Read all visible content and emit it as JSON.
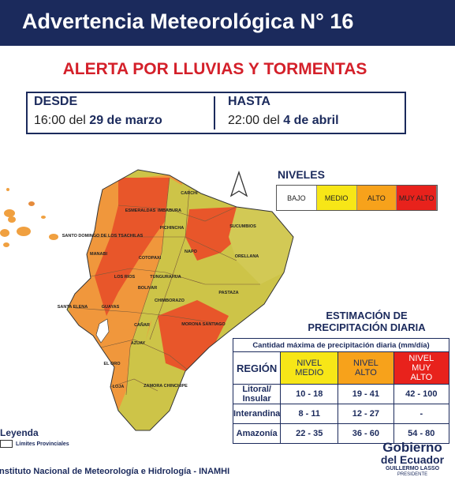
{
  "header": {
    "title": "Advertencia Meteorológica N° 16"
  },
  "alert": {
    "title": "ALERTA POR LLUVIAS Y TORMENTAS"
  },
  "period": {
    "from": {
      "label": "DESDE",
      "time": "16:00 del",
      "date": "29 de marzo"
    },
    "to": {
      "label": "HASTA",
      "time": "22:00 del",
      "date": "4 de abril"
    }
  },
  "levels": {
    "title": "NIVELES",
    "items": [
      {
        "label": "BAJO",
        "color": "#ffffff"
      },
      {
        "label": "MEDIO",
        "color": "#f7e617"
      },
      {
        "label": "ALTO",
        "color": "#f7a21b"
      },
      {
        "label": "MUY ALTO",
        "color": "#e8221c"
      }
    ]
  },
  "map": {
    "provinces": [
      "ESMERALDAS",
      "CARCHI",
      "IMBABURA",
      "SUCUMBIOS",
      "SANTO DOMINGO DE LOS TSACHILAS",
      "PICHINCHA",
      "NAPO",
      "ORELLANA",
      "MANABI",
      "COTOPAXI",
      "LOS RIOS",
      "TUNGURAHUA",
      "PASTAZA",
      "BOLIVAR",
      "CHIMBORAZO",
      "SANTA ELENA",
      "GUAYAS",
      "MORONA SANTIAGO",
      "CAÑAR",
      "AZUAY",
      "EL ORO",
      "LOJA",
      "ZAMORA CHINCHIPE"
    ]
  },
  "estimate": {
    "title_lines": [
      "ESTIMACIÓN DE",
      "PRECIPITACIÓN DIARIA"
    ],
    "table": {
      "caption": "Cantidad máxima de precipitación diaria (mm/día)",
      "header": [
        "REGIÓN",
        "NIVEL MEDIO",
        "NIVEL ALTO",
        "NIVEL MUY ALTO"
      ],
      "rows": [
        [
          "Litoral/ Insular",
          "10 - 18",
          "19 - 41",
          "42 - 100"
        ],
        [
          "Interandina",
          "8 - 11",
          "12 - 27",
          "-"
        ],
        [
          "Amazonía",
          "22 - 35",
          "36 - 60",
          "54 - 80"
        ]
      ]
    }
  },
  "legend": {
    "title": "Leyenda",
    "item": "Límites Provinciales"
  },
  "footer": {
    "institution": "Instituto Nacional de Meteorología e Hidrología - INAMHI",
    "logo": {
      "line1": "Gobierno",
      "line2": "del Ecuador",
      "line3": "GUILLERMO LASSO",
      "line4": "PRESIDENTE"
    }
  }
}
